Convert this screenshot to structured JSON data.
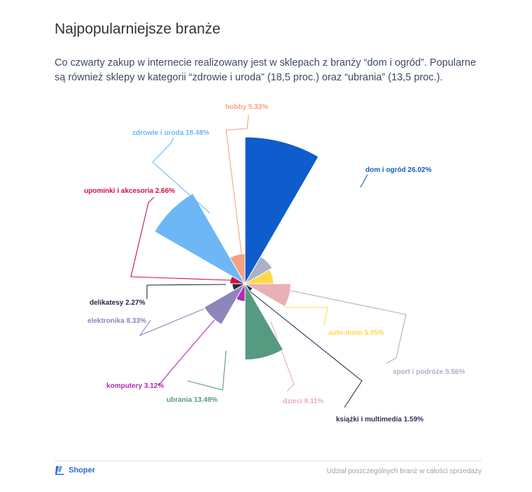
{
  "header": {
    "title": "Najpopularniejsze branże",
    "subtitle": "Co czwarty zakup w internecie realizowany jest w sklepach z branży “dom i ogród”. Popularne są również sklepy w kategorii “zdrowie i uroda” (18,5 proc.) oraz “ubrania” (13,5 proc.)."
  },
  "chart_data": {
    "type": "pie",
    "variant": "polar-area (radius proportional to value)",
    "legend": "none (labels with leader lines)",
    "slices": [
      {
        "label": "dom i ogród 26.02%",
        "name": "dom i ogród",
        "value": 26.02,
        "color": "#0f5ccc"
      },
      {
        "label": "sport i podróże 5.56%",
        "name": "sport i podróże",
        "value": 5.56,
        "color": "#aab1c9"
      },
      {
        "label": "auto-moto 5.05%",
        "name": "auto-moto",
        "value": 5.05,
        "color": "#ffd84a"
      },
      {
        "label": "dzieci 8.11%",
        "name": "dzieci",
        "value": 8.11,
        "color": "#e8b0b5"
      },
      {
        "label": "książki i multimedia 1.59%",
        "name": "książki i multimedia",
        "value": 1.59,
        "color": "#2f2f55"
      },
      {
        "label": "ubrania 13.49%",
        "name": "ubrania",
        "value": 13.49,
        "color": "#569a82"
      },
      {
        "label": "komputery 3.12%",
        "name": "komputery",
        "value": 3.12,
        "color": "#b32bb3"
      },
      {
        "label": "elektronika 8.33%",
        "name": "elektronika",
        "value": 8.33,
        "color": "#8c86ba"
      },
      {
        "label": "delikatesy 2.27%",
        "name": "delikatesy",
        "value": 2.27,
        "color": "#222a3c"
      },
      {
        "label": "upominki i akcesoria 2.66%",
        "name": "upominki i akcesoria",
        "value": 2.66,
        "color": "#cc1144"
      },
      {
        "label": "zdrowie i uroda 18.48%",
        "name": "zdrowie i uroda",
        "value": 18.48,
        "color": "#6db7f7"
      },
      {
        "label": "hobby 5.33%",
        "name": "hobby",
        "value": 5.33,
        "color": "#f7a17f"
      }
    ]
  },
  "footer": {
    "brand": "Shoper",
    "note": "Udział poszczególnych branż w całości sprzedaży"
  }
}
